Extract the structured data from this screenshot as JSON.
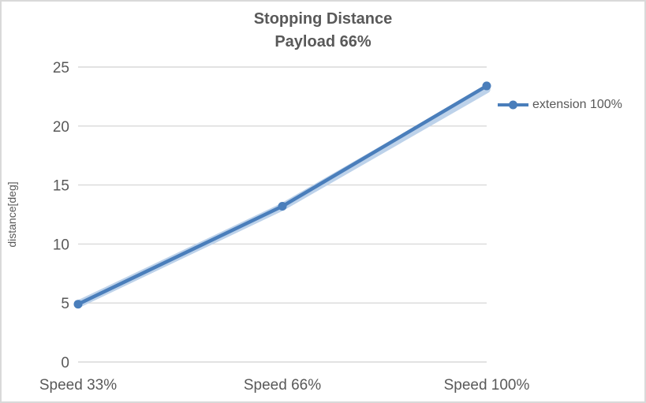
{
  "chart_data": {
    "type": "line",
    "title": "Stopping Distance",
    "subtitle": "Payload 66%",
    "ylabel": "distance[deg]",
    "categories": [
      "Speed 33%",
      "Speed 66%",
      "Speed 100%"
    ],
    "series": [
      {
        "name": "extension 100%",
        "values": [
          4.9,
          13.2,
          23.4
        ],
        "color": "#4a7ebb"
      }
    ],
    "shadow_band": {
      "values": [
        4.9,
        13.15,
        23.1
      ],
      "color": "#bdd2ea"
    },
    "ylim": [
      0,
      25
    ],
    "ytick_step": 5,
    "yticks": [
      0,
      5,
      10,
      15,
      20,
      25
    ],
    "grid": true,
    "legend_position": "right"
  },
  "colors": {
    "text": "#595959",
    "gridline": "#d9d9d9",
    "border": "#d9d9d9",
    "line": "#4a7ebb",
    "halo": "#bdd2ea",
    "background": "#ffffff"
  }
}
